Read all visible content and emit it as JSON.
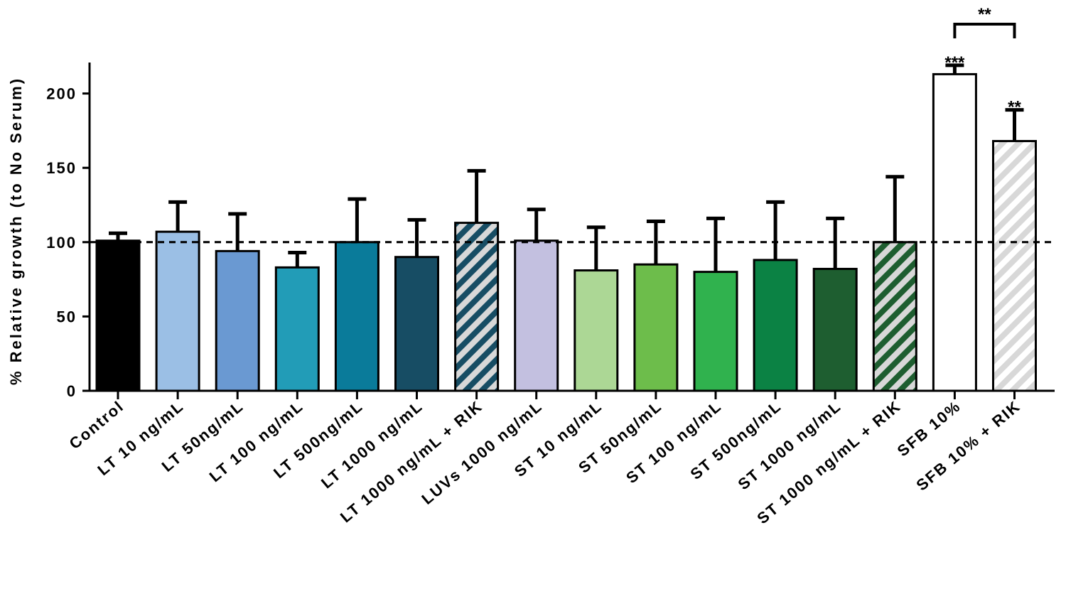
{
  "chart_data": {
    "type": "bar",
    "ylabel": "% Relative growth (to No Serum)",
    "ylim": [
      0,
      220
    ],
    "yticks": [
      0,
      50,
      100,
      150,
      200
    ],
    "reference_line": 100,
    "categories": [
      "Control",
      "LT 10 ng/mL",
      "LT 50ng/mL",
      "LT 100 ng/mL",
      "LT 500ng/mL",
      "LT 1000 ng/mL",
      "LT 1000 ng/mL + RIK",
      "LUVs 1000 ng/mL",
      "ST 10 ng/mL",
      "ST 50ng/mL",
      "ST 100 ng/mL",
      "ST 500ng/mL",
      "ST 1000 ng/mL",
      "ST 1000 ng/mL + RIK",
      "SFB 10%",
      "SFB 10% + RIK"
    ],
    "values": [
      101,
      107,
      94,
      83,
      100,
      90,
      113,
      101,
      81,
      85,
      80,
      88,
      82,
      100,
      213,
      168
    ],
    "errors": [
      5,
      20,
      25,
      10,
      29,
      25,
      35,
      21,
      29,
      29,
      36,
      39,
      34,
      44,
      6,
      21
    ],
    "colors": [
      "#000000",
      "#9bbfe5",
      "#6a99d2",
      "#229cb7",
      "#0a7b9a",
      "#174d64",
      "#174d64",
      "#c3c0e0",
      "#acd795",
      "#6dbd4b",
      "#30b24e",
      "#0b8244",
      "#1e5e30",
      "#1e5e30",
      "#ffffff",
      "#ffffff"
    ],
    "hatched": [
      false,
      false,
      false,
      false,
      false,
      false,
      true,
      false,
      false,
      false,
      false,
      false,
      false,
      true,
      false,
      true
    ],
    "hatch_colors": [
      "",
      "",
      "",
      "",
      "",
      "",
      "#174d64",
      "",
      "",
      "",
      "",
      "",
      "",
      "#1e5e30",
      "",
      "#d8d8d8"
    ],
    "annotations": [
      {
        "bar_index": 14,
        "text": "***"
      },
      {
        "bar_index": 15,
        "text": "**"
      }
    ],
    "bracket": {
      "from": 14,
      "to": 15,
      "text": "**"
    }
  }
}
